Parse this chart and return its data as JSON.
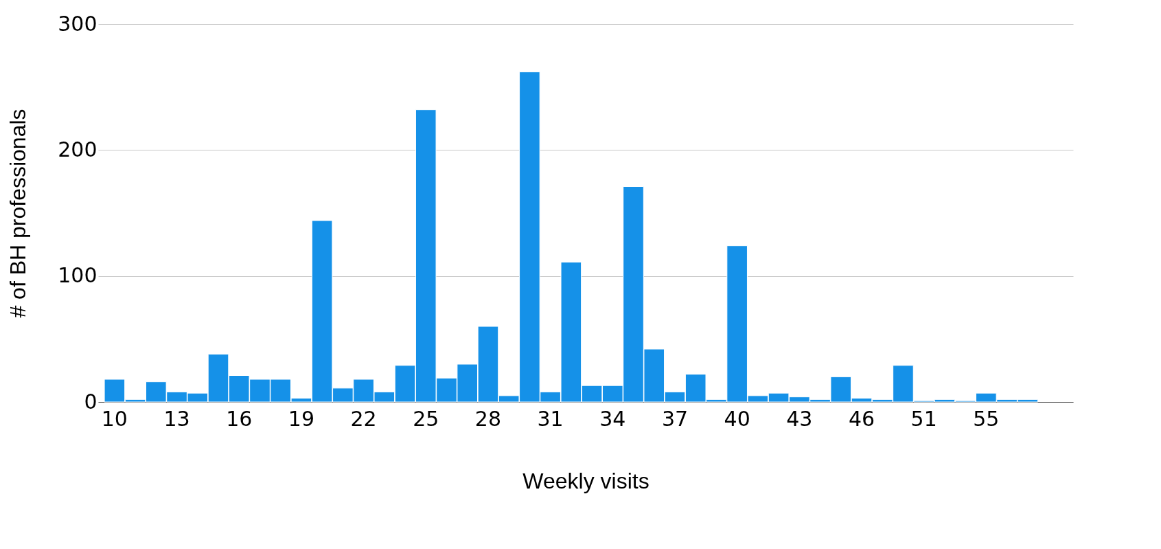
{
  "chart_data": {
    "type": "bar",
    "xlabel": "Weekly visits",
    "ylabel": "# of BH professionals",
    "categories": [
      "10",
      null,
      null,
      "13",
      null,
      null,
      "16",
      null,
      null,
      "19",
      null,
      null,
      "22",
      null,
      null,
      "25",
      null,
      null,
      "28",
      null,
      null,
      "31",
      null,
      null,
      "34",
      null,
      null,
      "37",
      null,
      null,
      "40",
      null,
      null,
      "43",
      null,
      null,
      "46",
      null,
      null,
      "51",
      null,
      null,
      "55",
      null,
      null
    ],
    "values": [
      18,
      2,
      16,
      8,
      7,
      38,
      21,
      18,
      18,
      3,
      144,
      11,
      18,
      8,
      29,
      232,
      19,
      30,
      60,
      5,
      262,
      8,
      111,
      13,
      13,
      171,
      42,
      8,
      22,
      2,
      124,
      5,
      7,
      4,
      2,
      20,
      3,
      2,
      29,
      1,
      2,
      1,
      7,
      2,
      2
    ],
    "color": "#1591e8",
    "ylim": [
      0,
      300
    ],
    "yticks": [
      0,
      100,
      200,
      300
    ],
    "grid": "y"
  }
}
